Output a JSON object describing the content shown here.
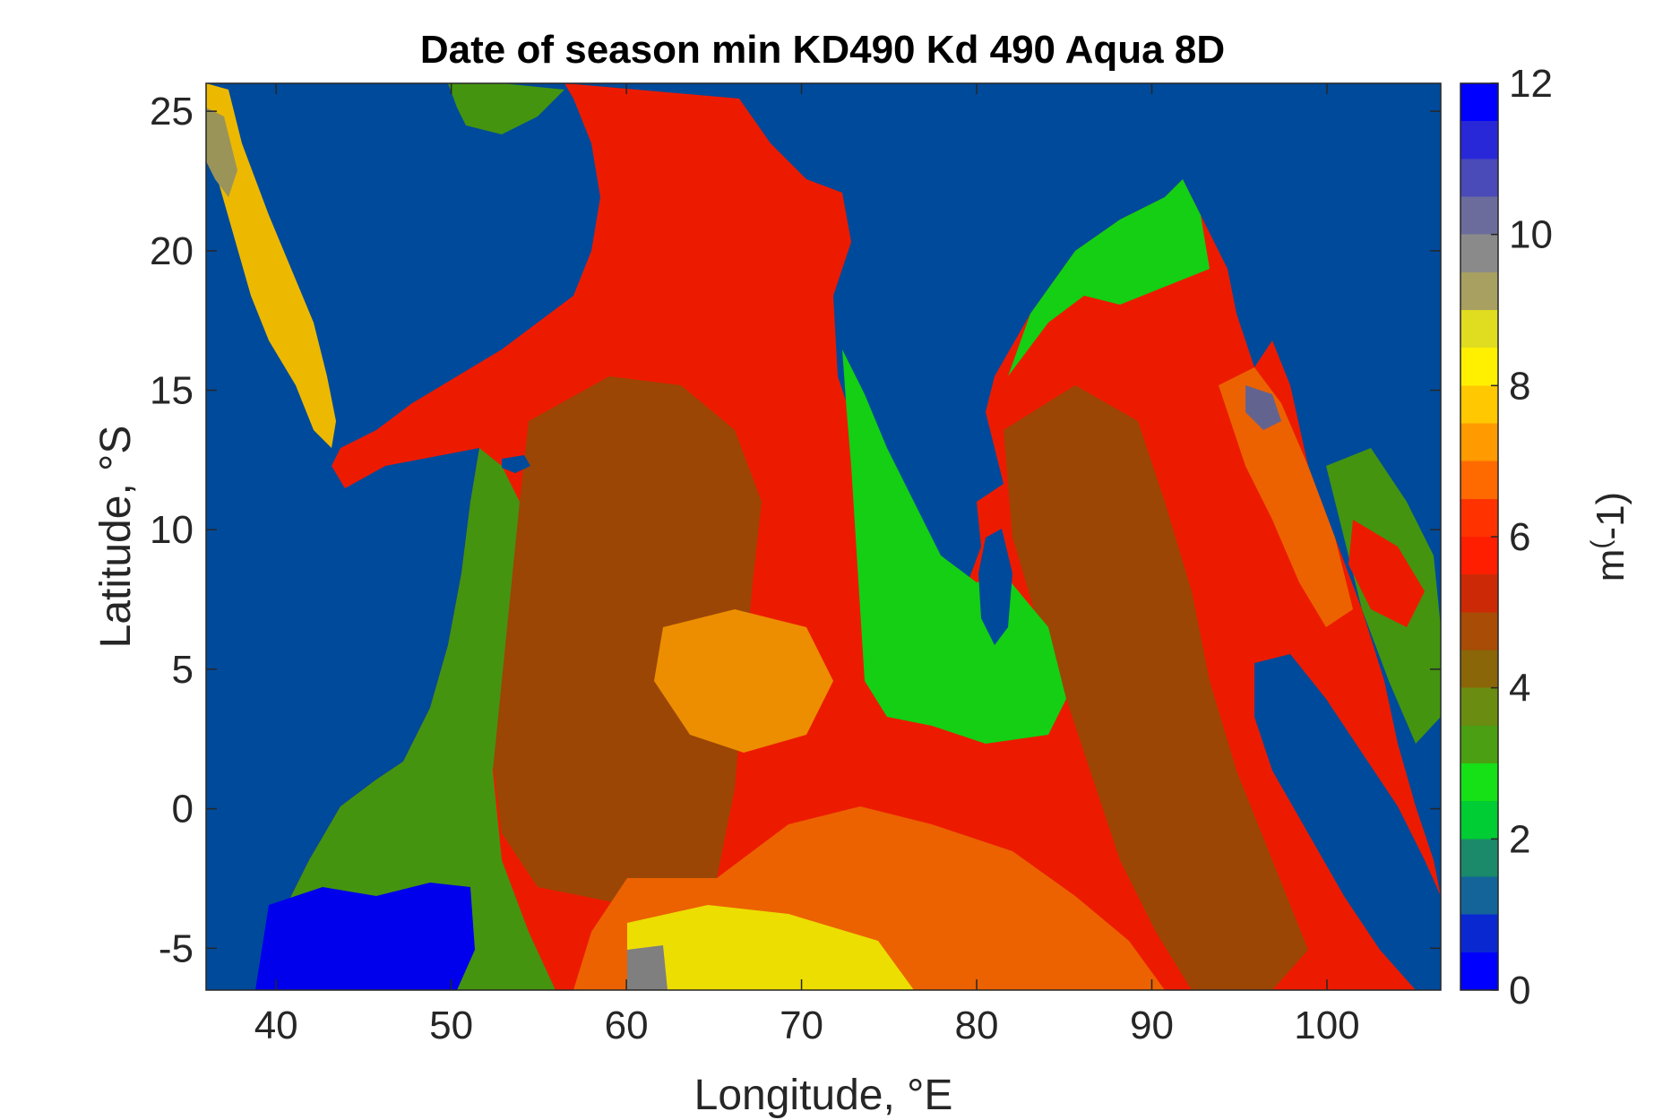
{
  "map": {
    "title": "Date of season min KD490 Kd 490 Aqua 8D",
    "xlabel": "Longitude, °E",
    "ylabel": "Latitude, °S",
    "colorbar_label": "m(-1)",
    "colorbar_label_base": "m",
    "colorbar_label_sup": "(",
    "colorbar_label_rest": "-1)",
    "x_range": [
      36,
      106.5
    ],
    "y_range": [
      -6.5,
      26
    ],
    "x_ticks": [
      40,
      50,
      60,
      70,
      80,
      90,
      100
    ],
    "y_ticks": [
      -5,
      0,
      5,
      10,
      15,
      20,
      25
    ],
    "x_tick_labels": [
      "40",
      "50",
      "60",
      "70",
      "80",
      "90",
      "100"
    ],
    "y_tick_labels": [
      "-5",
      "0",
      "5",
      "10",
      "15",
      "20",
      "25"
    ],
    "colorbar_range": [
      0,
      12
    ],
    "colorbar_ticks": [
      0,
      2,
      4,
      6,
      8,
      10,
      12
    ],
    "colorbar_tick_labels": [
      "0",
      "2",
      "4",
      "6",
      "8",
      "10",
      "12"
    ],
    "land_color": "#0050a8",
    "colormap": [
      "#0000ff",
      "#0a28d0",
      "#14649a",
      "#1a8a6a",
      "#00cc33",
      "#16e016",
      "#4aa012",
      "#6a8c10",
      "#8a6608",
      "#a84c06",
      "#cc2a06",
      "#ff1e00",
      "#ff3200",
      "#ff6a00",
      "#ff9a00",
      "#ffc800",
      "#fff000",
      "#e0dc20",
      "#a8a060",
      "#8a8a8a",
      "#6c6c9c",
      "#4a4ab8",
      "#2828d8",
      "#0000ff"
    ]
  }
}
